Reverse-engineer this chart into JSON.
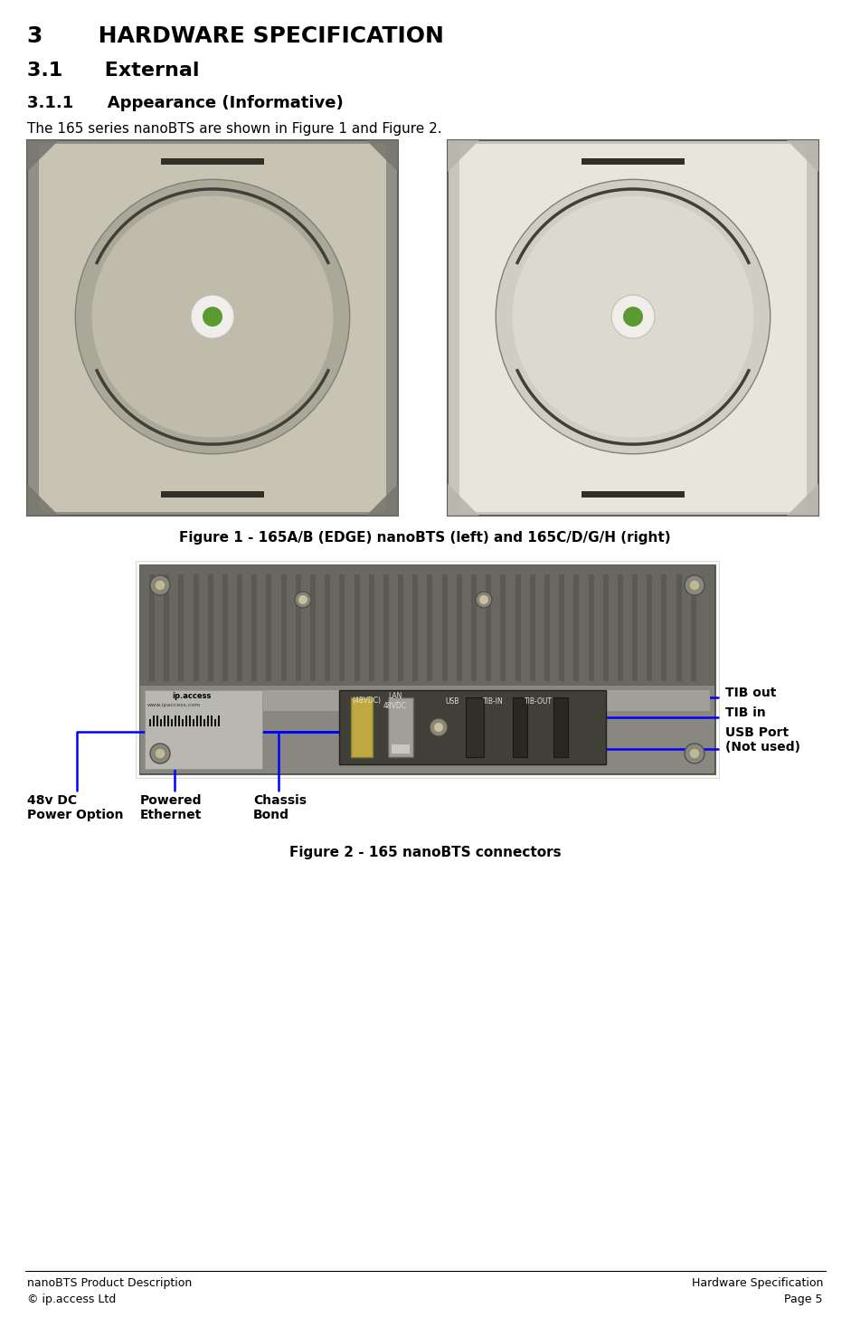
{
  "title_h1": "3       HARDWARE SPECIFICATION",
  "title_h2": "3.1      External",
  "title_h3": "3.1.1      Appearance (Informative)",
  "body_text": "The 165 series nanoBTS are shown in Figure 1 and Figure 2.",
  "fig1_caption": "Figure 1 - 165A/B (EDGE) nanoBTS (left) and 165C/D/G/H (right)",
  "fig2_caption": "Figure 2 - 165 nanoBTS connectors",
  "labels": {
    "tib_out": "TIB out",
    "tib_in": "TIB in",
    "usb_port": "USB Port\n(Not used)",
    "chassis_bond": "Chassis\nBond",
    "powered_ethernet": "Powered\nEthernet",
    "power_48v": "48v DC\nPower Option"
  },
  "footer_left_1": "nanoBTS Product Description",
  "footer_left_2": "© ip.access Ltd",
  "footer_right_1": "Hardware Specification",
  "footer_right_2": "Page 5",
  "bg_color": "#ffffff",
  "text_color": "#000000",
  "arrow_color": "#0000ff"
}
